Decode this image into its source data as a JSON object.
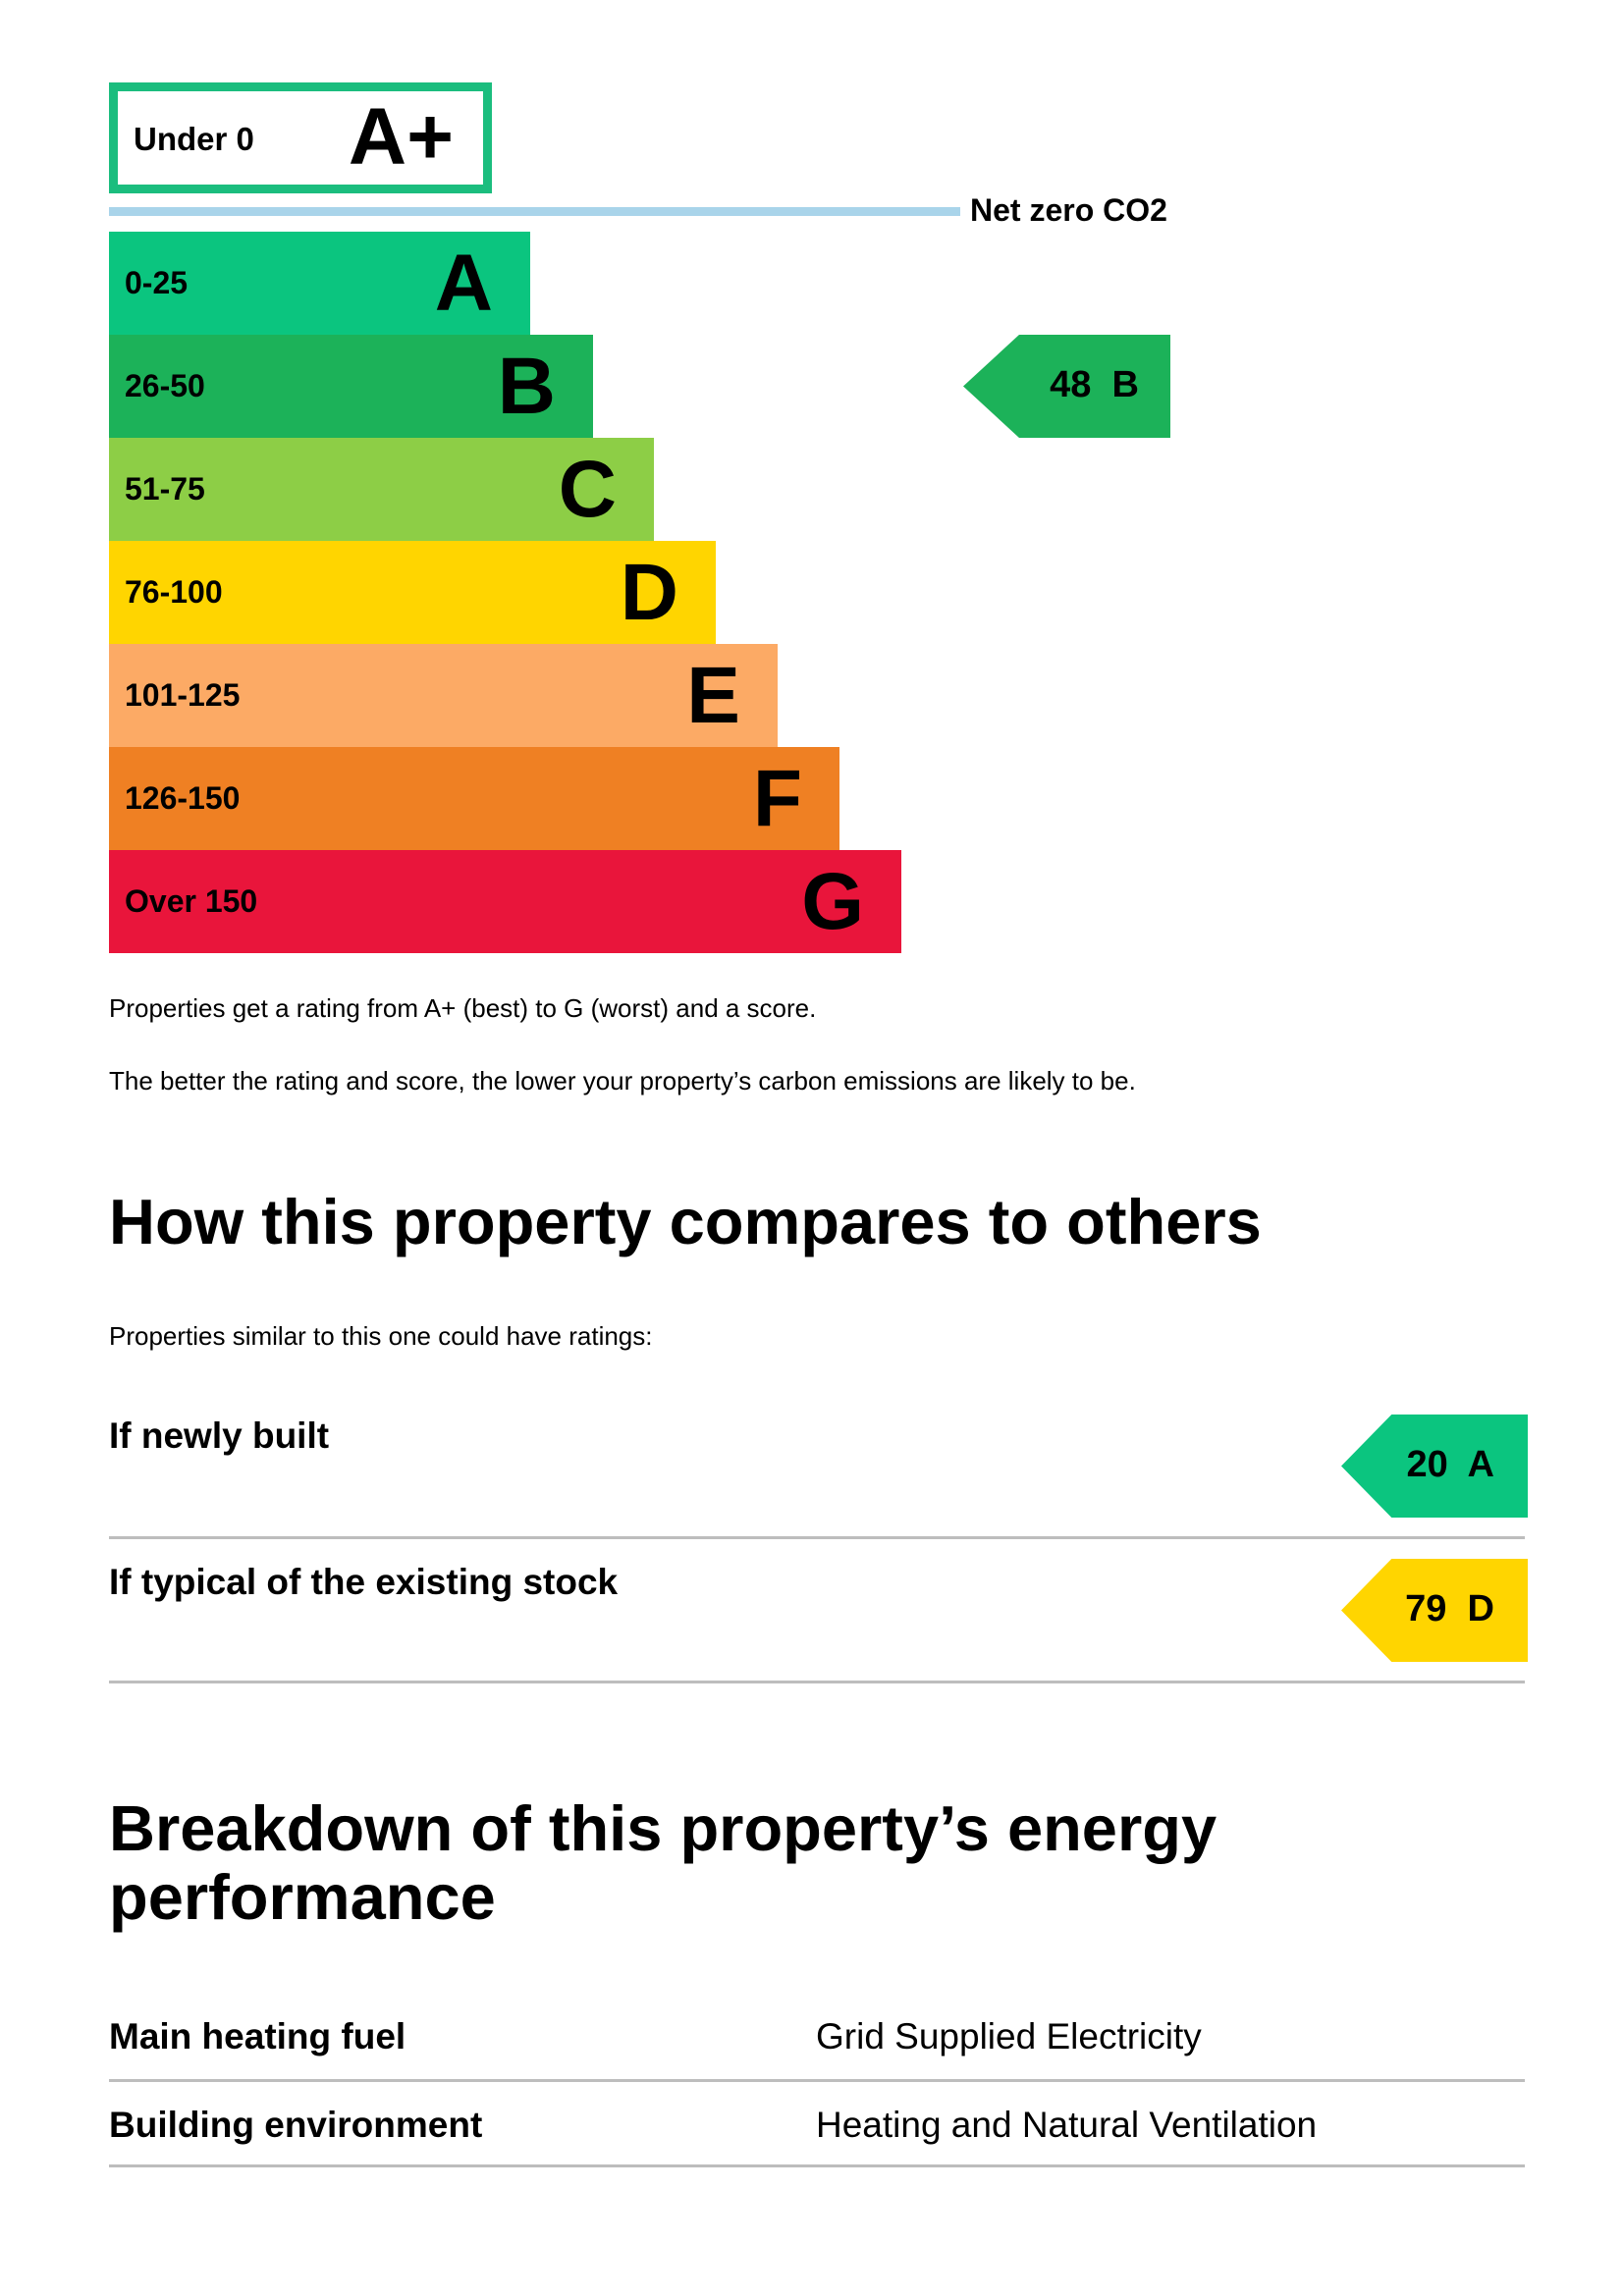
{
  "rating_scale": {
    "top_band": {
      "range": "Under 0",
      "letter": "A+",
      "color": "#1bbd7e"
    },
    "net_zero_label": "Net zero CO2",
    "net_zero_line_color": "#a9d4ea",
    "bands": [
      {
        "range": "0-25",
        "letter": "A",
        "color": "#0bc57f"
      },
      {
        "range": "26-50",
        "letter": "B",
        "color": "#1cb259"
      },
      {
        "range": "51-75",
        "letter": "C",
        "color": "#8dce46"
      },
      {
        "range": "76-100",
        "letter": "D",
        "color": "#ffd500"
      },
      {
        "range": "101-125",
        "letter": "E",
        "color": "#fcaa65"
      },
      {
        "range": "126-150",
        "letter": "F",
        "color": "#ef8023"
      },
      {
        "range": "Over 150",
        "letter": "G",
        "color": "#e9153b"
      }
    ],
    "current_rating": {
      "score": "48",
      "letter": "B",
      "color": "#1cb259"
    }
  },
  "explanations": [
    "Properties get a rating from A+ (best) to G (worst) and a score.",
    "The better the rating and score, the lower your property’s carbon emissions are likely to be."
  ],
  "comparison": {
    "heading": "How this property compares to others",
    "intro": "Properties similar to this one could have ratings:",
    "rows": [
      {
        "label": "If newly built",
        "score": "20",
        "letter": "A",
        "color": "#0bc57f"
      },
      {
        "label": "If typical of the existing stock",
        "score": "79",
        "letter": "D",
        "color": "#ffd500"
      }
    ]
  },
  "breakdown": {
    "heading_line1": "Breakdown of this property’s energy",
    "heading_line2": "performance",
    "rows": [
      {
        "label": "Main heating fuel",
        "value": "Grid Supplied Electricity"
      },
      {
        "label": "Building environment",
        "value": "Heating and Natural Ventilation"
      }
    ]
  }
}
